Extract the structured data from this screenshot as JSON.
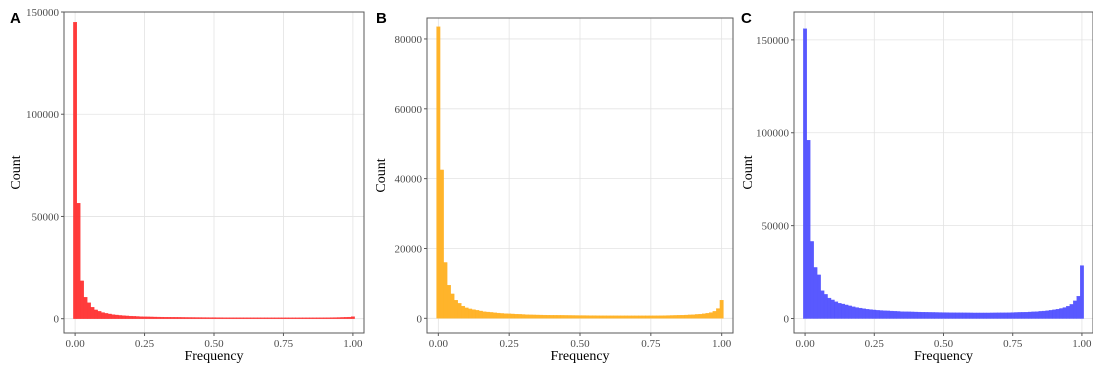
{
  "chart_data": [
    {
      "panel": "A",
      "type": "bar",
      "xlabel": "Frequency",
      "ylabel": "Count",
      "xlim": [
        -0.04,
        1.04
      ],
      "ylim": [
        -7000,
        150000
      ],
      "xticks": [
        0,
        0.25,
        0.5,
        0.75,
        1.0
      ],
      "xtick_labels": [
        "0.00",
        "0.25",
        "0.50",
        "0.75",
        "1.00"
      ],
      "yticks": [
        0,
        50000,
        100000,
        150000
      ],
      "ytick_labels": [
        "0",
        "50000",
        "100000",
        "150000"
      ],
      "grid": true,
      "color": "#FF3030",
      "bin_width": 0.0125,
      "x": [
        0.0,
        0.0125,
        0.025,
        0.0375,
        0.05,
        0.0625,
        0.075,
        0.0875,
        0.1,
        0.1125,
        0.125,
        0.1375,
        0.15,
        0.1625,
        0.175,
        0.1875,
        0.2,
        0.2125,
        0.225,
        0.2375,
        0.25,
        0.2625,
        0.275,
        0.2875,
        0.3,
        0.3125,
        0.325,
        0.3375,
        0.35,
        0.3625,
        0.375,
        0.3875,
        0.4,
        0.4125,
        0.425,
        0.4375,
        0.45,
        0.4625,
        0.475,
        0.4875,
        0.5,
        0.5125,
        0.525,
        0.5375,
        0.55,
        0.5625,
        0.575,
        0.5875,
        0.6,
        0.6125,
        0.625,
        0.6375,
        0.65,
        0.6625,
        0.675,
        0.6875,
        0.7,
        0.7125,
        0.725,
        0.7375,
        0.75,
        0.7625,
        0.775,
        0.7875,
        0.8,
        0.8125,
        0.825,
        0.8375,
        0.85,
        0.8625,
        0.875,
        0.8875,
        0.9,
        0.9125,
        0.925,
        0.9375,
        0.95,
        0.9625,
        0.975,
        0.9875,
        1.0
      ],
      "values": [
        145000,
        56500,
        18500,
        10500,
        7800,
        5600,
        4300,
        3600,
        3000,
        2600,
        2300,
        2000,
        1800,
        1600,
        1500,
        1350,
        1250,
        1150,
        1080,
        1000,
        950,
        900,
        860,
        820,
        790,
        760,
        730,
        710,
        690,
        670,
        650,
        630,
        610,
        600,
        590,
        580,
        570,
        560,
        550,
        540,
        540,
        530,
        520,
        510,
        505,
        500,
        495,
        490,
        485,
        480,
        475,
        470,
        470,
        465,
        460,
        460,
        455,
        450,
        450,
        450,
        445,
        445,
        440,
        440,
        440,
        440,
        445,
        450,
        455,
        460,
        470,
        480,
        495,
        510,
        530,
        550,
        580,
        620,
        680,
        760,
        1000
      ]
    },
    {
      "panel": "B",
      "type": "bar",
      "xlabel": "Frequency",
      "ylabel": "Count",
      "xlim": [
        -0.04,
        1.04
      ],
      "ylim": [
        -4200,
        86000
      ],
      "xticks": [
        0,
        0.25,
        0.5,
        0.75,
        1.0
      ],
      "xtick_labels": [
        "0.00",
        "0.25",
        "0.50",
        "0.75",
        "1.00"
      ],
      "yticks": [
        0,
        20000,
        40000,
        60000,
        80000
      ],
      "ytick_labels": [
        "0",
        "20000",
        "40000",
        "60000",
        "80000"
      ],
      "grid": true,
      "color": "#FFB020",
      "bin_width": 0.0125,
      "x": [
        0.0,
        0.0125,
        0.025,
        0.0375,
        0.05,
        0.0625,
        0.075,
        0.0875,
        0.1,
        0.1125,
        0.125,
        0.1375,
        0.15,
        0.1625,
        0.175,
        0.1875,
        0.2,
        0.2125,
        0.225,
        0.2375,
        0.25,
        0.2625,
        0.275,
        0.2875,
        0.3,
        0.3125,
        0.325,
        0.3375,
        0.35,
        0.3625,
        0.375,
        0.3875,
        0.4,
        0.4125,
        0.425,
        0.4375,
        0.45,
        0.4625,
        0.475,
        0.4875,
        0.5,
        0.5125,
        0.525,
        0.5375,
        0.55,
        0.5625,
        0.575,
        0.5875,
        0.6,
        0.6125,
        0.625,
        0.6375,
        0.65,
        0.6625,
        0.675,
        0.6875,
        0.7,
        0.7125,
        0.725,
        0.7375,
        0.75,
        0.7625,
        0.775,
        0.7875,
        0.8,
        0.8125,
        0.825,
        0.8375,
        0.85,
        0.8625,
        0.875,
        0.8875,
        0.9,
        0.9125,
        0.925,
        0.9375,
        0.95,
        0.9625,
        0.975,
        0.9875,
        1.0
      ],
      "values": [
        83500,
        42500,
        16000,
        9500,
        7000,
        5200,
        4300,
        3500,
        3000,
        2700,
        2500,
        2300,
        2100,
        1900,
        1800,
        1700,
        1600,
        1500,
        1400,
        1350,
        1300,
        1250,
        1200,
        1150,
        1100,
        1050,
        1000,
        980,
        960,
        940,
        920,
        900,
        880,
        870,
        860,
        850,
        840,
        830,
        820,
        810,
        800,
        800,
        790,
        780,
        780,
        770,
        760,
        760,
        750,
        750,
        750,
        740,
        740,
        740,
        730,
        730,
        730,
        730,
        730,
        740,
        740,
        750,
        760,
        770,
        780,
        800,
        820,
        840,
        870,
        900,
        940,
        990,
        1050,
        1120,
        1200,
        1300,
        1450,
        1650,
        2000,
        2800,
        5200
      ]
    },
    {
      "panel": "C",
      "type": "bar",
      "xlabel": "Frequency",
      "ylabel": "Count",
      "xlim": [
        -0.04,
        1.04
      ],
      "ylim": [
        -7800,
        165000
      ],
      "xticks": [
        0,
        0.25,
        0.5,
        0.75,
        1.0
      ],
      "xtick_labels": [
        "0.00",
        "0.25",
        "0.50",
        "0.75",
        "1.00"
      ],
      "yticks": [
        0,
        50000,
        100000,
        150000
      ],
      "ytick_labels": [
        "0",
        "50000",
        "100000",
        "150000"
      ],
      "grid": true,
      "color": "#5050FF",
      "bin_width": 0.0125,
      "x": [
        0.0,
        0.0125,
        0.025,
        0.0375,
        0.05,
        0.0625,
        0.075,
        0.0875,
        0.1,
        0.1125,
        0.125,
        0.1375,
        0.15,
        0.1625,
        0.175,
        0.1875,
        0.2,
        0.2125,
        0.225,
        0.2375,
        0.25,
        0.2625,
        0.275,
        0.2875,
        0.3,
        0.3125,
        0.325,
        0.3375,
        0.35,
        0.3625,
        0.375,
        0.3875,
        0.4,
        0.4125,
        0.425,
        0.4375,
        0.45,
        0.4625,
        0.475,
        0.4875,
        0.5,
        0.5125,
        0.525,
        0.5375,
        0.55,
        0.5625,
        0.575,
        0.5875,
        0.6,
        0.6125,
        0.625,
        0.6375,
        0.65,
        0.6625,
        0.675,
        0.6875,
        0.7,
        0.7125,
        0.725,
        0.7375,
        0.75,
        0.7625,
        0.775,
        0.7875,
        0.8,
        0.8125,
        0.825,
        0.8375,
        0.85,
        0.8625,
        0.875,
        0.8875,
        0.9,
        0.9125,
        0.925,
        0.9375,
        0.95,
        0.9625,
        0.975,
        0.9875,
        1.0
      ],
      "values": [
        156000,
        96000,
        41500,
        27500,
        23500,
        15000,
        13000,
        11000,
        10000,
        9000,
        8200,
        7800,
        7300,
        6800,
        6300,
        5900,
        5600,
        5300,
        5000,
        4800,
        4600,
        4400,
        4300,
        4200,
        4100,
        4000,
        3900,
        3800,
        3700,
        3650,
        3600,
        3550,
        3500,
        3450,
        3400,
        3350,
        3300,
        3280,
        3250,
        3220,
        3200,
        3180,
        3150,
        3130,
        3100,
        3080,
        3060,
        3040,
        3020,
        3000,
        3000,
        3000,
        3000,
        3000,
        3020,
        3040,
        3060,
        3080,
        3100,
        3150,
        3200,
        3250,
        3300,
        3350,
        3400,
        3500,
        3600,
        3700,
        3850,
        4000,
        4200,
        4400,
        4700,
        5000,
        5400,
        5900,
        6600,
        7600,
        9500,
        12000,
        28500
      ]
    }
  ]
}
